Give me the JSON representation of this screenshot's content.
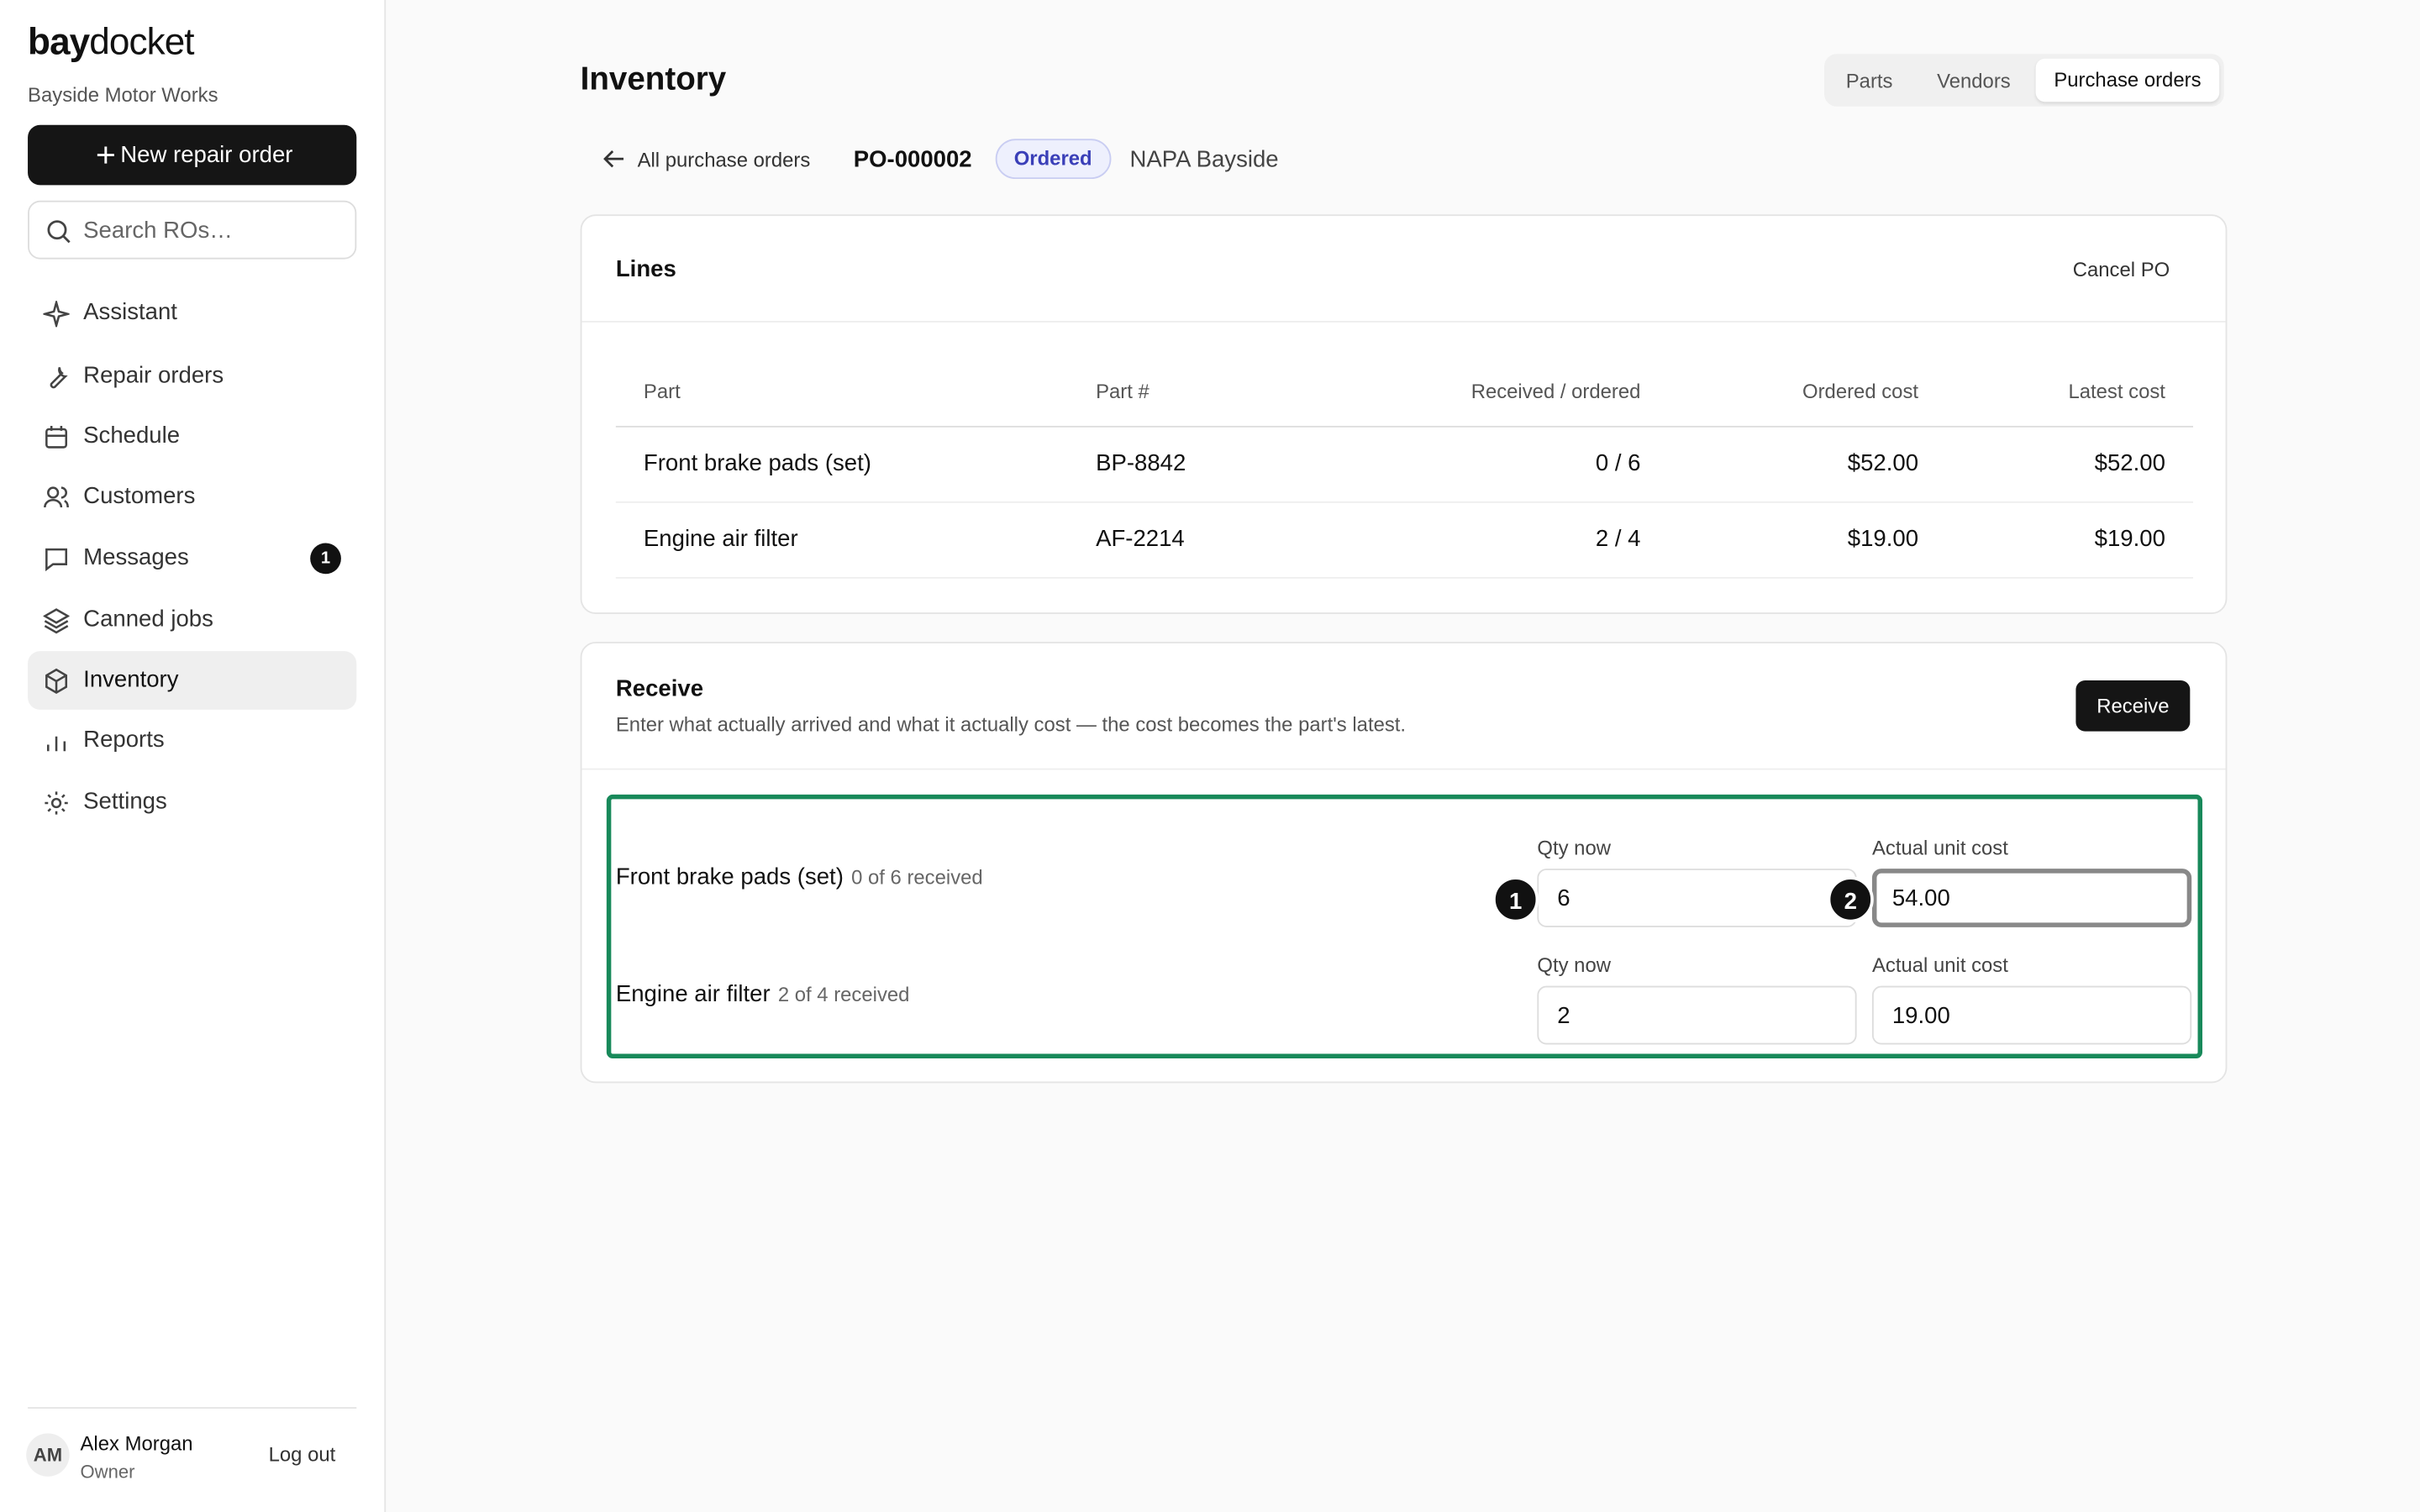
{
  "sidebar": {
    "brand_bold": "bay",
    "brand_rest": "docket",
    "shop": "Bayside Motor Works",
    "new_button": "New repair order",
    "search_placeholder": "Search ROs…",
    "nav": [
      {
        "label": "Assistant"
      },
      {
        "label": "Repair orders"
      },
      {
        "label": "Schedule"
      },
      {
        "label": "Customers"
      },
      {
        "label": "Messages",
        "badge": "1"
      },
      {
        "label": "Canned jobs"
      },
      {
        "label": "Inventory"
      },
      {
        "label": "Reports"
      },
      {
        "label": "Settings"
      }
    ],
    "user": {
      "initials": "AM",
      "name": "Alex Morgan",
      "role": "Owner",
      "logout": "Log out"
    }
  },
  "header": {
    "title": "Inventory",
    "tabs": [
      "Parts",
      "Vendors",
      "Purchase orders"
    ]
  },
  "po": {
    "back": "All purchase orders",
    "number": "PO-000002",
    "status": "Ordered",
    "vendor": "NAPA Bayside"
  },
  "lines": {
    "title": "Lines",
    "cancel": "Cancel PO",
    "columns": [
      "Part",
      "Part #",
      "Received / ordered",
      "Ordered cost",
      "Latest cost"
    ],
    "rows": [
      [
        "Front brake pads (set)",
        "BP-8842",
        "0 / 6",
        "$52.00",
        "$52.00"
      ],
      [
        "Engine air filter",
        "AF-2214",
        "2 / 4",
        "$19.00",
        "$19.00"
      ]
    ]
  },
  "receive": {
    "title": "Receive",
    "description": "Enter what actually arrived and what it actually cost — the cost becomes the part's latest.",
    "button": "Receive",
    "items": [
      {
        "name": "Front brake pads (set)",
        "status": "0 of 6 received",
        "qty_label": "Qty now",
        "qty": "6",
        "cost_label": "Actual unit cost",
        "cost": "54.00"
      },
      {
        "name": "Engine air filter",
        "status": "2 of 4 received",
        "qty_label": "Qty now",
        "qty": "2",
        "cost_label": "Actual unit cost",
        "cost": "19.00"
      }
    ]
  },
  "markers": [
    "1",
    "2"
  ]
}
